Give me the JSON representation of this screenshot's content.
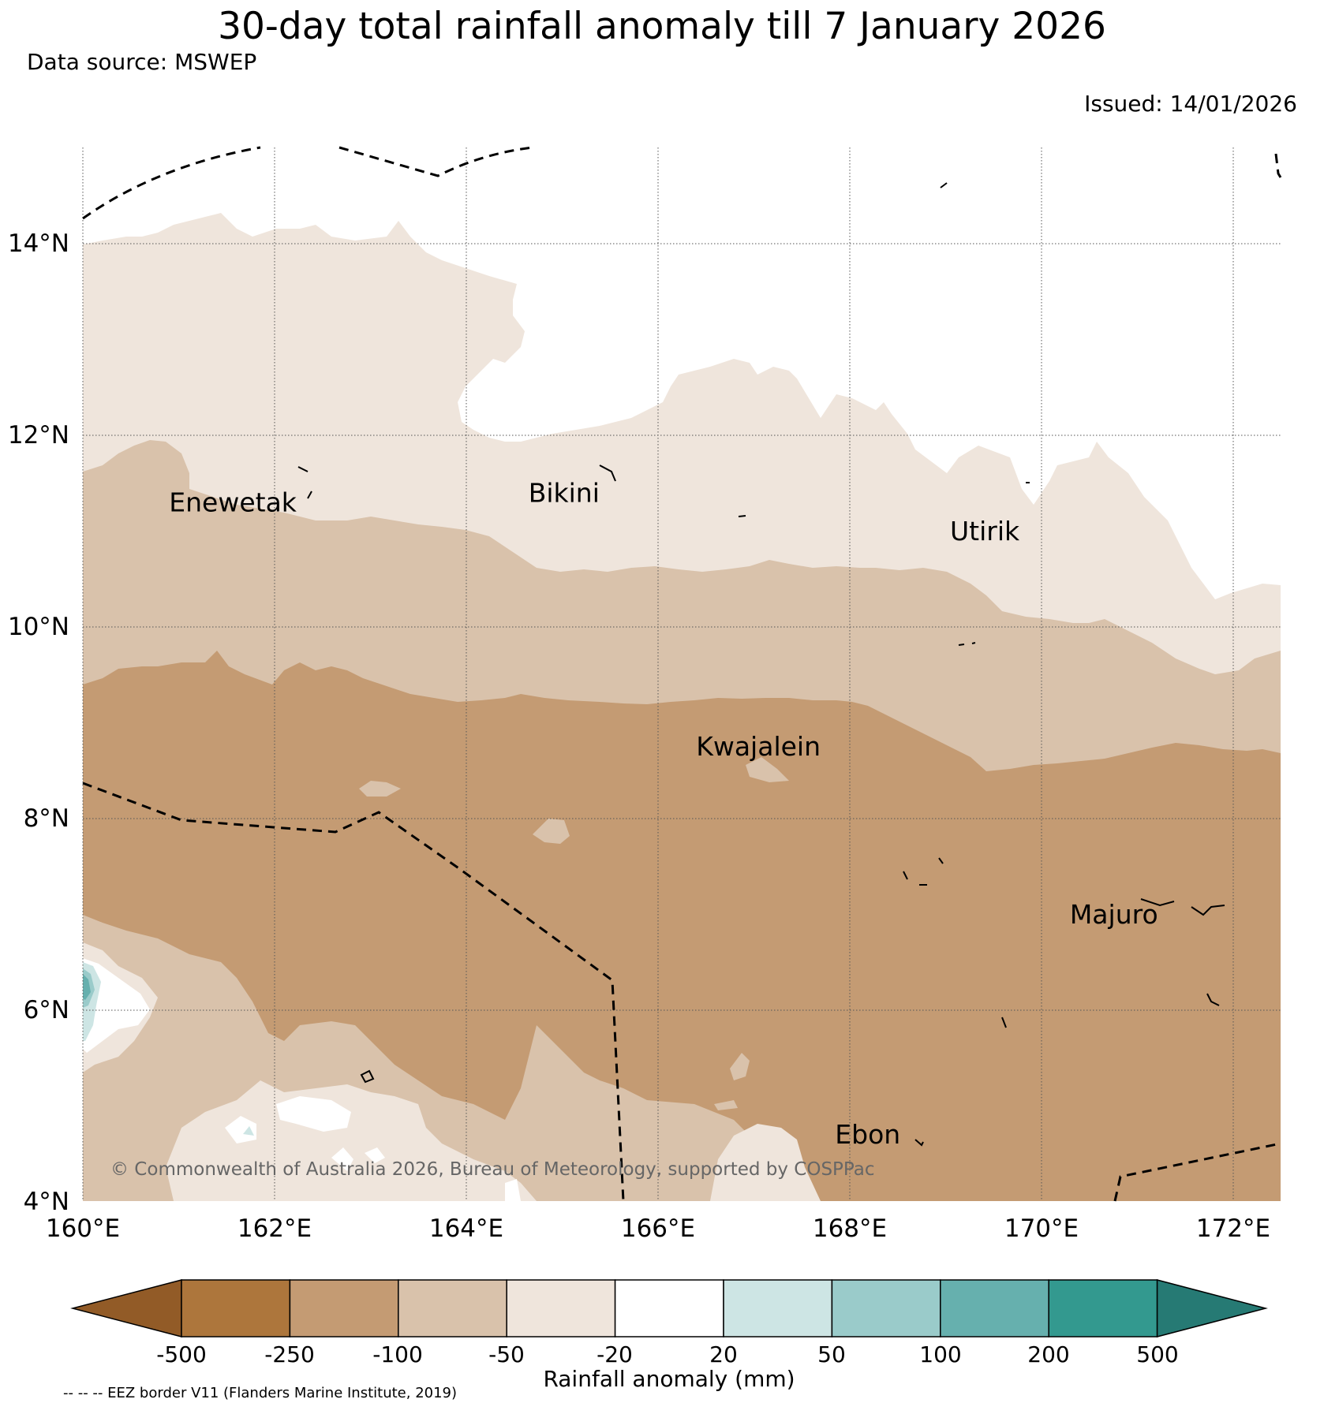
{
  "title": "30-day total rainfall anomaly till 7 January 2026",
  "source": "Data source: MSWEP",
  "issued": "Issued: 14/01/2026",
  "copyright": "© Commonwealth of Australia 2026, Bureau of Meteorology, supported by COSPPac",
  "eez_note": "-- -- -- EEZ border V11 (Flanders Marine Institute, 2019)",
  "map": {
    "lon_range": [
      160,
      172.5
    ],
    "lat_range": [
      4,
      15
    ],
    "lon_ticks": [
      "160°E",
      "162°E",
      "164°E",
      "166°E",
      "168°E",
      "170°E",
      "172°E"
    ],
    "lat_ticks": [
      "4°N",
      "6°N",
      "8°N",
      "10°N",
      "12°N",
      "14°N"
    ],
    "places": [
      {
        "name": "Enewetak",
        "lon": 160.9,
        "lat": 11.2
      },
      {
        "name": "Bikini",
        "lon": 164.65,
        "lat": 11.3
      },
      {
        "name": "Utirik",
        "lon": 169.05,
        "lat": 10.9
      },
      {
        "name": "Kwajalein",
        "lon": 166.4,
        "lat": 8.65
      },
      {
        "name": "Majuro",
        "lon": 170.3,
        "lat": 6.9
      },
      {
        "name": "Ebon",
        "lon": 167.85,
        "lat": 4.6
      }
    ],
    "colors": {
      "lt_m500": "#925b27",
      "m500_m250": "#ad763c",
      "m250_m100": "#c49b73",
      "m100_m50": "#d9c2ab",
      "m50_m20": "#efe5dc",
      "m20_20": "#ffffff",
      "20_50": "#cde5e4",
      "50_100": "#9acbca",
      "100_200": "#66b0ae",
      "200_500": "#33998f",
      "gt_500": "#267a74"
    }
  },
  "legend": {
    "label": "Rainfall anomaly (mm)",
    "ticks": [
      "-500",
      "-250",
      "-100",
      "-50",
      "-20",
      "20",
      "50",
      "100",
      "200",
      "500"
    ]
  }
}
